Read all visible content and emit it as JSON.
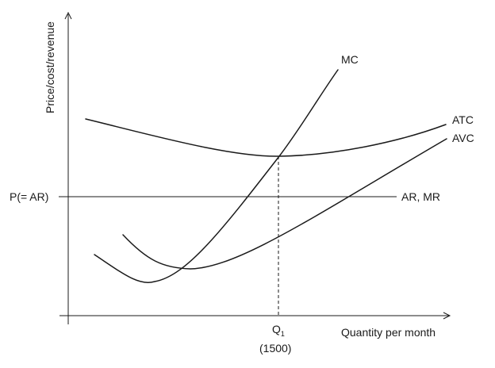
{
  "diagram": {
    "y_axis_label": "Price/cost/revenue",
    "x_axis_label": "Quantity per month",
    "price_label": "P(= AR)",
    "quantity_label": "Q",
    "quantity_subscript": "1",
    "quantity_value": "(1500)",
    "curves": {
      "mc": "MC",
      "atc": "ATC",
      "avc": "AVC",
      "ar_mr": "AR, MR"
    }
  }
}
